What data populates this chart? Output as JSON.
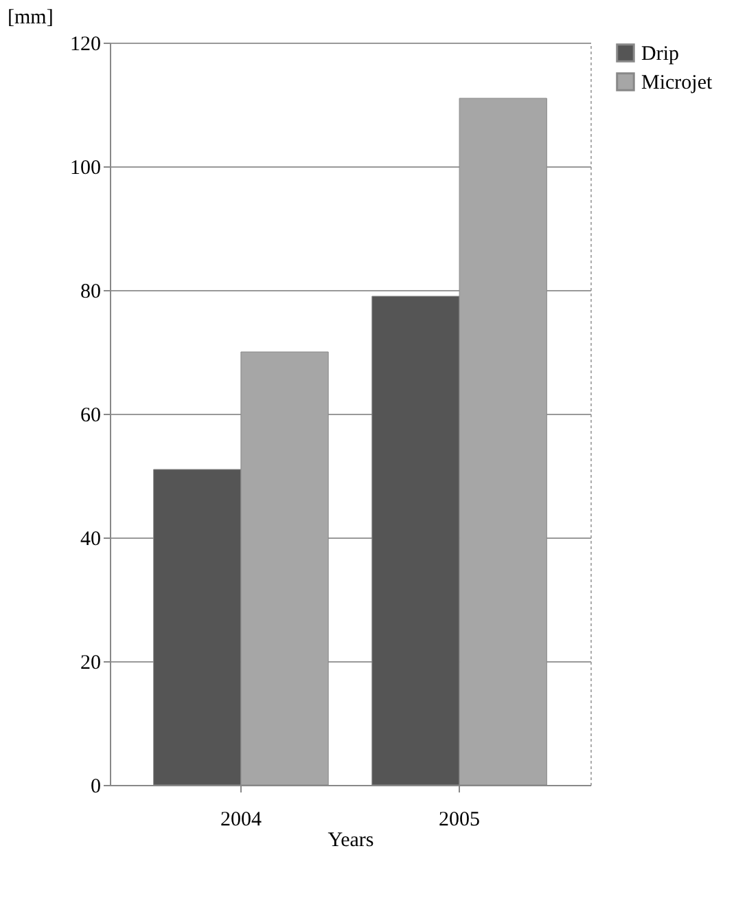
{
  "chart_data": {
    "type": "bar",
    "ylabel": "[mm]",
    "xlabel": "Years",
    "categories": [
      "2004",
      "2005"
    ],
    "series": [
      {
        "name": "Drip",
        "color": "#555555",
        "values": [
          51,
          79
        ]
      },
      {
        "name": "Microjet",
        "color": "#a6a6a6",
        "values": [
          70,
          111
        ]
      }
    ],
    "ylim": [
      0,
      120
    ],
    "yticks": [
      0,
      20,
      40,
      60,
      80,
      100,
      120
    ],
    "grid": "y",
    "legend": "right"
  }
}
